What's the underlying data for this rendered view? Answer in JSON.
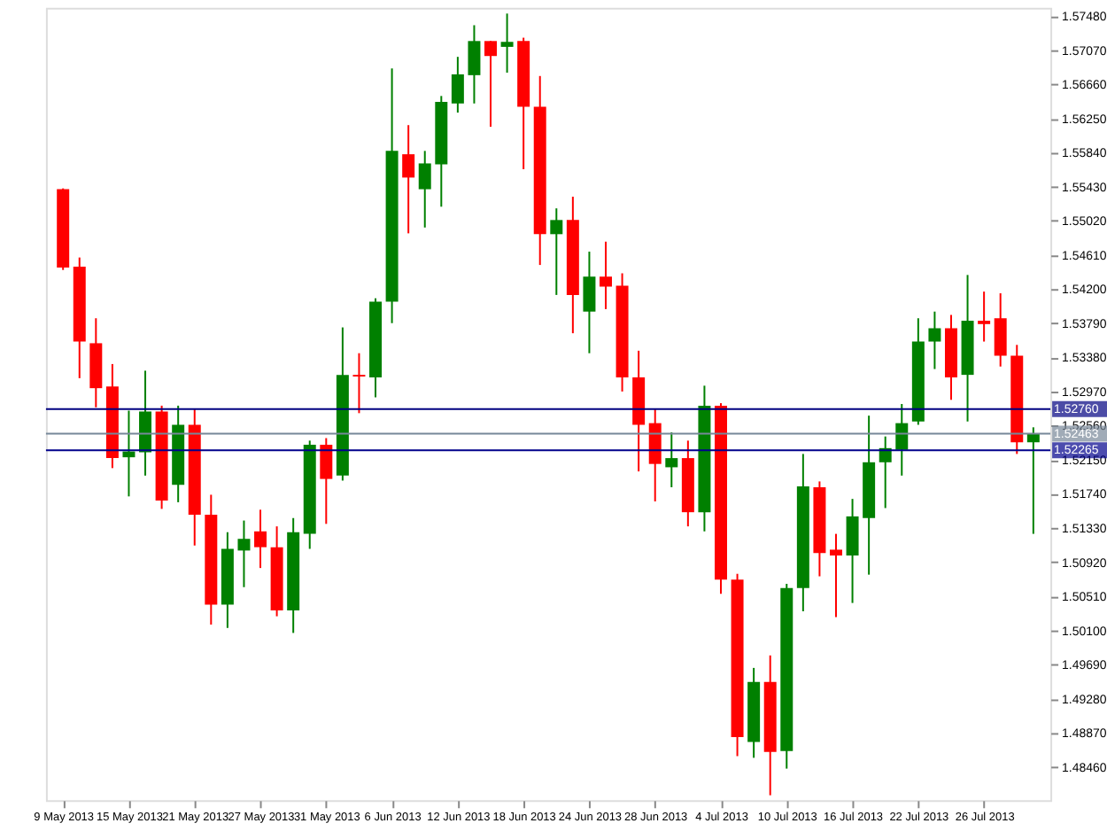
{
  "chart_data": {
    "type": "candlestick",
    "grid": false,
    "categories": [
      "9 May 2013",
      null,
      null,
      null,
      "15 May 2013",
      null,
      null,
      null,
      "21 May 2013",
      null,
      null,
      null,
      "27 May 2013",
      null,
      null,
      null,
      "31 May 2013",
      null,
      null,
      null,
      "6 Jun 2013",
      null,
      null,
      null,
      "12 Jun 2013",
      null,
      null,
      null,
      "18 Jun 2013",
      null,
      null,
      null,
      "24 Jun 2013",
      null,
      null,
      null,
      "28 Jun 2013",
      null,
      null,
      null,
      "4 Jul 2013",
      null,
      null,
      null,
      "10 Jul 2013",
      null,
      null,
      null,
      "16 Jul 2013",
      null,
      null,
      null,
      "22 Jul 2013",
      null,
      null,
      null,
      "26 Jul 2013",
      null,
      null,
      null
    ],
    "ohlc": [
      [
        1.554,
        1.5541,
        1.5443,
        1.5446
      ],
      [
        1.5447,
        1.5458,
        1.5313,
        1.5357
      ],
      [
        1.5355,
        1.5385,
        1.5278,
        1.5301
      ],
      [
        1.5303,
        1.533,
        1.5205,
        1.5217
      ],
      [
        1.5218,
        1.5274,
        1.5171,
        1.5225
      ],
      [
        1.5224,
        1.5322,
        1.5196,
        1.5273
      ],
      [
        1.5273,
        1.528,
        1.5156,
        1.5166
      ],
      [
        1.5185,
        1.528,
        1.5164,
        1.5257
      ],
      [
        1.5257,
        1.5276,
        1.5112,
        1.5149
      ],
      [
        1.5149,
        1.5173,
        1.5017,
        1.5041
      ],
      [
        1.5041,
        1.5128,
        1.5013,
        1.5108
      ],
      [
        1.5106,
        1.5142,
        1.5062,
        1.512
      ],
      [
        1.5129,
        1.5155,
        1.5085,
        1.511
      ],
      [
        1.511,
        1.5135,
        1.5027,
        1.5034
      ],
      [
        1.5034,
        1.5145,
        1.5007,
        1.5128
      ],
      [
        1.5126,
        1.5238,
        1.5108,
        1.5233
      ],
      [
        1.5233,
        1.5241,
        1.5138,
        1.5192
      ],
      [
        1.5196,
        1.5374,
        1.519,
        1.5317
      ],
      [
        1.5317,
        1.5343,
        1.5271,
        1.5315
      ],
      [
        1.5314,
        1.5409,
        1.529,
        1.5405
      ],
      [
        1.5405,
        1.5685,
        1.5379,
        1.5586
      ],
      [
        1.5582,
        1.5617,
        1.5487,
        1.5554
      ],
      [
        1.554,
        1.5586,
        1.5494,
        1.5571
      ],
      [
        1.557,
        1.5652,
        1.5519,
        1.5645
      ],
      [
        1.5643,
        1.5699,
        1.5632,
        1.5678
      ],
      [
        1.5677,
        1.5737,
        1.5643,
        1.5718
      ],
      [
        1.5718,
        1.5718,
        1.5615,
        1.57
      ],
      [
        1.5711,
        1.5751,
        1.568,
        1.5717
      ],
      [
        1.5718,
        1.5722,
        1.5564,
        1.5639
      ],
      [
        1.5639,
        1.5676,
        1.5449,
        1.5486
      ],
      [
        1.5486,
        1.5517,
        1.5413,
        1.5503
      ],
      [
        1.5503,
        1.5531,
        1.5367,
        1.5413
      ],
      [
        1.5393,
        1.5465,
        1.5343,
        1.5435
      ],
      [
        1.5435,
        1.5477,
        1.5396,
        1.5423
      ],
      [
        1.5424,
        1.5439,
        1.5297,
        1.5314
      ],
      [
        1.5314,
        1.5346,
        1.5201,
        1.5257
      ],
      [
        1.5259,
        1.5276,
        1.5165,
        1.521
      ],
      [
        1.5206,
        1.5248,
        1.5182,
        1.5217
      ],
      [
        1.5217,
        1.5238,
        1.5135,
        1.5152
      ],
      [
        1.5152,
        1.5304,
        1.5129,
        1.528
      ],
      [
        1.528,
        1.5283,
        1.5054,
        1.5071
      ],
      [
        1.5071,
        1.5078,
        1.4859,
        1.4882
      ],
      [
        1.4876,
        1.4965,
        1.4857,
        1.4948
      ],
      [
        1.4948,
        1.498,
        1.4812,
        1.4864
      ],
      [
        1.4865,
        1.5066,
        1.4844,
        1.5061
      ],
      [
        1.5061,
        1.5222,
        1.5033,
        1.5183
      ],
      [
        1.5182,
        1.5189,
        1.5075,
        1.5103
      ],
      [
        1.5107,
        1.5126,
        1.5026,
        1.51
      ],
      [
        1.51,
        1.5168,
        1.5043,
        1.5147
      ],
      [
        1.5145,
        1.5268,
        1.5077,
        1.5212
      ],
      [
        1.5212,
        1.5243,
        1.5157,
        1.5229
      ],
      [
        1.5227,
        1.5282,
        1.5196,
        1.5259
      ],
      [
        1.5261,
        1.5385,
        1.5257,
        1.5357
      ],
      [
        1.5357,
        1.5393,
        1.5324,
        1.5373
      ],
      [
        1.5373,
        1.5389,
        1.5287,
        1.5314
      ],
      [
        1.5317,
        1.5437,
        1.5261,
        1.5382
      ],
      [
        1.5382,
        1.5417,
        1.5357,
        1.5378
      ],
      [
        1.5385,
        1.5415,
        1.5327,
        1.534
      ],
      [
        1.534,
        1.5353,
        1.5222,
        1.5236
      ],
      [
        1.5236,
        1.5254,
        1.5126,
        1.5246
      ]
    ],
    "colors": [
      "#ff0000",
      "#ff0000",
      "#ff0000",
      "#ff0000",
      "#008000",
      "#008000",
      "#ff0000",
      "#008000",
      "#ff0000",
      "#ff0000",
      "#008000",
      "#008000",
      "#ff0000",
      "#ff0000",
      "#008000",
      "#008000",
      "#ff0000",
      "#008000",
      "#ff0000",
      "#008000",
      "#008000",
      "#ff0000",
      "#008000",
      "#008000",
      "#008000",
      "#008000",
      "#ff0000",
      "#008000",
      "#ff0000",
      "#ff0000",
      "#008000",
      "#ff0000",
      "#008000",
      "#ff0000",
      "#ff0000",
      "#ff0000",
      "#ff0000",
      "#008000",
      "#ff0000",
      "#008000",
      "#ff0000",
      "#ff0000",
      "#008000",
      "#ff0000",
      "#008000",
      "#008000",
      "#ff0000",
      "#ff0000",
      "#008000",
      "#008000",
      "#008000",
      "#008000",
      "#008000",
      "#008000",
      "#ff0000",
      "#008000",
      "#ff0000",
      "#ff0000",
      "#ff0000",
      "#008000"
    ],
    "ylim": [
      1.4806,
      1.5758
    ],
    "yticks": [
      {
        "value": 1.5748,
        "label": "1.57480"
      },
      {
        "value": 1.5707,
        "label": "1.57070"
      },
      {
        "value": 1.5666,
        "label": "1.56660"
      },
      {
        "value": 1.5625,
        "label": "1.56250"
      },
      {
        "value": 1.5584,
        "label": "1.55840"
      },
      {
        "value": 1.5543,
        "label": "1.55430"
      },
      {
        "value": 1.5502,
        "label": "1.55020"
      },
      {
        "value": 1.5461,
        "label": "1.54610"
      },
      {
        "value": 1.542,
        "label": "1.54200"
      },
      {
        "value": 1.5379,
        "label": "1.53790"
      },
      {
        "value": 1.5338,
        "label": "1.53380"
      },
      {
        "value": 1.5297,
        "label": "1.52970"
      },
      {
        "value": 1.5256,
        "label": "1.52560"
      },
      {
        "value": 1.5215,
        "label": "1.52150"
      },
      {
        "value": 1.5174,
        "label": "1.51740"
      },
      {
        "value": 1.5133,
        "label": "1.51330"
      },
      {
        "value": 1.5092,
        "label": "1.50920"
      },
      {
        "value": 1.5051,
        "label": "1.50510"
      },
      {
        "value": 1.501,
        "label": "1.50100"
      },
      {
        "value": 1.4969,
        "label": "1.49690"
      },
      {
        "value": 1.4928,
        "label": "1.49280"
      },
      {
        "value": 1.4887,
        "label": "1.48870"
      },
      {
        "value": 1.4846,
        "label": "1.48460"
      }
    ],
    "ref_lines": [
      {
        "axis": "y",
        "value": 1.5276,
        "label": "1.52760",
        "color": "#000080"
      },
      {
        "axis": "y",
        "value": 1.52463,
        "label": "1.52463",
        "color": "#778899"
      },
      {
        "axis": "y",
        "value": 1.52265,
        "label": "1.52265",
        "color": "#00008b"
      }
    ]
  }
}
